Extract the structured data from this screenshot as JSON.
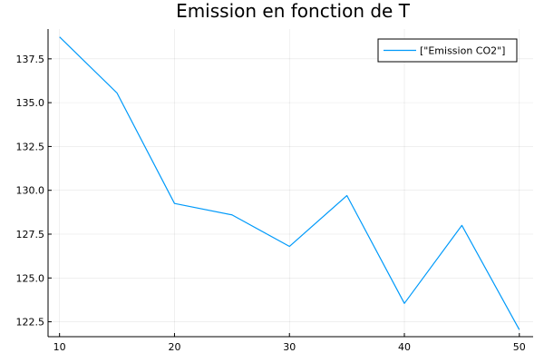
{
  "chart_data": {
    "type": "line",
    "title": "Emission en fonction de T",
    "xlabel": "",
    "ylabel": "",
    "x": [
      10,
      15,
      20,
      25,
      30,
      35,
      40,
      45,
      50
    ],
    "series": [
      {
        "name": "[\"Emission CO2\"]",
        "values": [
          138.75,
          135.55,
          129.25,
          128.6,
          126.8,
          129.7,
          123.55,
          128.0,
          122.05
        ],
        "color": "#009AFA"
      }
    ],
    "xlim": [
      9,
      51.2
    ],
    "ylim": [
      121.65,
      139.2
    ],
    "xticks": [
      10,
      20,
      30,
      40,
      50
    ],
    "xtick_labels": [
      "10",
      "20",
      "30",
      "40",
      "50"
    ],
    "yticks": [
      122.5,
      125.0,
      127.5,
      130.0,
      132.5,
      135.0,
      137.5
    ],
    "ytick_labels": [
      "122.5",
      "125.0",
      "127.5",
      "130.0",
      "132.5",
      "135.0",
      "137.5"
    ],
    "grid": true,
    "legend_position": "top-right"
  }
}
